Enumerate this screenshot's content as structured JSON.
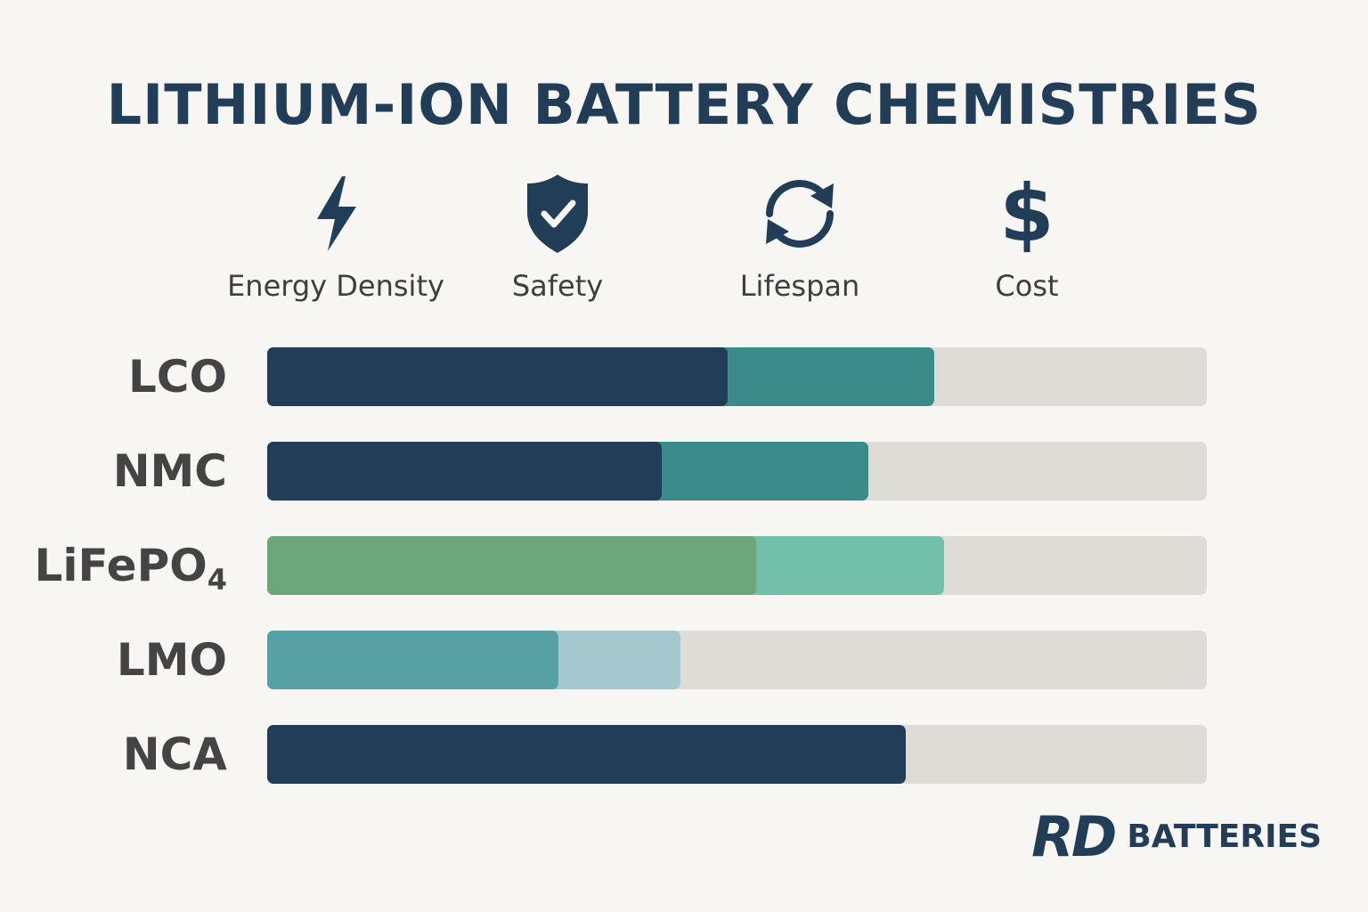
{
  "header": {
    "title": "LITHIUM-ION BATTERY CHEMISTRIES"
  },
  "metrics": [
    {
      "label": "Energy Density",
      "icon": "lightning-bolt-icon"
    },
    {
      "label": "Safety",
      "icon": "shield-check-icon"
    },
    {
      "label": "Lifespan",
      "icon": "cycle-arrows-icon"
    },
    {
      "label": "Cost",
      "icon": "dollar-icon",
      "glyph": "$"
    }
  ],
  "brand": {
    "mark": "RD",
    "name": "BATTERIES"
  },
  "colors": {
    "title": "#223d57",
    "track": "#dedcd7",
    "navy": "#223d57",
    "teal": "#3a8b8a",
    "green": "#6ba77a",
    "mint": "#72c0a9",
    "blue_teal": "#57a0a4",
    "light_blue": "#a5c8cf"
  },
  "chart_data": {
    "type": "bar",
    "stacked": true,
    "orientation": "horizontal",
    "categories": [
      "LCO",
      "NMC",
      "LiFePO4",
      "LMO",
      "NCA"
    ],
    "category_labels": [
      {
        "main": "LCO",
        "sub": ""
      },
      {
        "main": "NMC",
        "sub": ""
      },
      {
        "main": "LiFePO",
        "sub": "4"
      },
      {
        "main": "LMO",
        "sub": ""
      },
      {
        "main": "NCA",
        "sub": ""
      }
    ],
    "xlim": [
      0,
      1
    ],
    "grid": false,
    "rows": [
      {
        "segments": [
          {
            "value": 0.49,
            "color": "#223d57"
          },
          {
            "value": 0.22,
            "color": "#3a8b8a"
          }
        ]
      },
      {
        "segments": [
          {
            "value": 0.42,
            "color": "#223d57"
          },
          {
            "value": 0.22,
            "color": "#3a8b8a"
          }
        ]
      },
      {
        "segments": [
          {
            "value": 0.52,
            "color": "#6ba77a"
          },
          {
            "value": 0.2,
            "color": "#72c0a9"
          }
        ]
      },
      {
        "segments": [
          {
            "value": 0.31,
            "color": "#57a0a4"
          },
          {
            "value": 0.13,
            "color": "#a5c8cf"
          }
        ]
      },
      {
        "segments": [
          {
            "value": 0.68,
            "color": "#223d57"
          }
        ]
      }
    ]
  }
}
